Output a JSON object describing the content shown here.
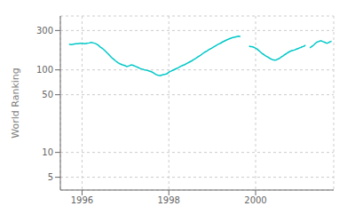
{
  "chart_data": {
    "type": "line",
    "ylabel": "World Ranking",
    "color": "#00c8c8",
    "log": "y",
    "grid": true,
    "xlim": [
      1995.5,
      2001.8
    ],
    "xticks": [
      1996,
      1998,
      2000
    ],
    "ylim": [
      3.5,
      450
    ],
    "yticks": [
      5,
      10,
      50,
      100,
      300
    ],
    "series": [
      {
        "x": [
          1995.7,
          1995.7513,
          1995.8026,
          1995.8539,
          1995.9052,
          1995.9565,
          1996.0078,
          1996.0591,
          1996.1104,
          1996.1617,
          1996.213,
          1996.2643,
          1996.3156,
          1996.3669,
          1996.4182,
          1996.4695,
          1996.5208,
          1996.5721,
          1996.6234,
          1996.6747,
          1996.726,
          1996.7773,
          1996.8286,
          1996.8799,
          1996.9312,
          1996.9825,
          1997.0338,
          1997.0851,
          1997.1364,
          1997.1877,
          1997.239,
          1997.2903,
          1997.3416,
          1997.3929,
          1997.4442,
          1997.4955,
          1997.5468,
          1997.5981,
          1997.6494,
          1997.7006,
          1997.7519,
          1997.8032,
          1997.8545,
          1997.9058,
          1997.9571,
          1998.0084,
          1998.0597,
          1998.111,
          1998.1623,
          1998.2136,
          1998.2649,
          1998.3162,
          1998.3675,
          1998.4188,
          1998.4701,
          1998.5214,
          1998.5727,
          1998.624,
          1998.6753,
          1998.7266,
          1998.7779,
          1998.8292,
          1998.8805,
          1998.9318,
          1998.9831,
          1999.0344,
          1999.0857,
          1999.137,
          1999.1883,
          1999.2396,
          1999.2909,
          1999.3422,
          1999.3935,
          1999.4448,
          1999.4961,
          1999.5474,
          1999.5987,
          1999.65
        ],
        "values": [
          205,
          203,
          205,
          207,
          208,
          210,
          210,
          208,
          210,
          212,
          215,
          212,
          208,
          200,
          190,
          182,
          172,
          162,
          152,
          142,
          135,
          128,
          122,
          118,
          115,
          113,
          110,
          112,
          115,
          113,
          110,
          107,
          104,
          102,
          100,
          99,
          97,
          95,
          92,
          88,
          86,
          85,
          87,
          88,
          90,
          94,
          97,
          100,
          103,
          106,
          110,
          113,
          116,
          120,
          124,
          128,
          133,
          138,
          144,
          150,
          157,
          164,
          170,
          177,
          183,
          190,
          197,
          204,
          210,
          218,
          225,
          232,
          238,
          244,
          248,
          252,
          256,
          255
        ]
      },
      {
        "x": [
          1999.85,
          1999.8771,
          1999.9042,
          1999.93125,
          1999.9583,
          1999.9854,
          2000.0125,
          2000.0396,
          2000.0667,
          2000.09375,
          2000.1208,
          2000.1479,
          2000.175,
          2000.2021,
          2000.2292,
          2000.25625,
          2000.2833,
          2000.3104,
          2000.3375,
          2000.3646,
          2000.3917,
          2000.41875,
          2000.4458,
          2000.4729,
          2000.5,
          2000.5271,
          2000.5542,
          2000.58125,
          2000.6083,
          2000.6354,
          2000.6625,
          2000.6896,
          2000.7167,
          2000.74375,
          2000.7708,
          2000.7979,
          2000.825,
          2000.8521,
          2000.8792,
          2000.90625,
          2000.9333,
          2000.9604,
          2000.9875,
          2001.0146,
          2001.0417,
          2001.06875,
          2001.0958,
          2001.1229,
          2001.15
        ],
        "values": [
          195,
          192,
          192,
          190,
          188,
          185,
          182,
          178,
          173,
          168,
          163,
          158,
          155,
          152,
          148,
          145,
          143,
          140,
          137,
          135,
          133,
          132,
          131,
          132,
          134,
          136,
          138,
          142,
          145,
          148,
          152,
          155,
          158,
          162,
          165,
          168,
          170,
          172,
          173,
          175,
          178,
          180,
          182,
          185,
          187,
          190,
          192,
          195,
          200
        ]
      },
      {
        "x": [
          2001.25,
          2001.2717,
          2001.2935,
          2001.3152,
          2001.337,
          2001.3587,
          2001.3804,
          2001.4022,
          2001.4239,
          2001.4457,
          2001.4674,
          2001.4891,
          2001.5109,
          2001.5326,
          2001.5543,
          2001.5761,
          2001.5978,
          2001.6196,
          2001.6413,
          2001.663,
          2001.6848,
          2001.7065,
          2001.7283,
          2001.75
        ],
        "values": [
          185,
          188,
          192,
          196,
          200,
          205,
          210,
          215,
          218,
          220,
          222,
          225,
          225,
          223,
          220,
          218,
          215,
          213,
          210,
          212,
          215,
          218,
          220,
          222
        ]
      }
    ]
  }
}
